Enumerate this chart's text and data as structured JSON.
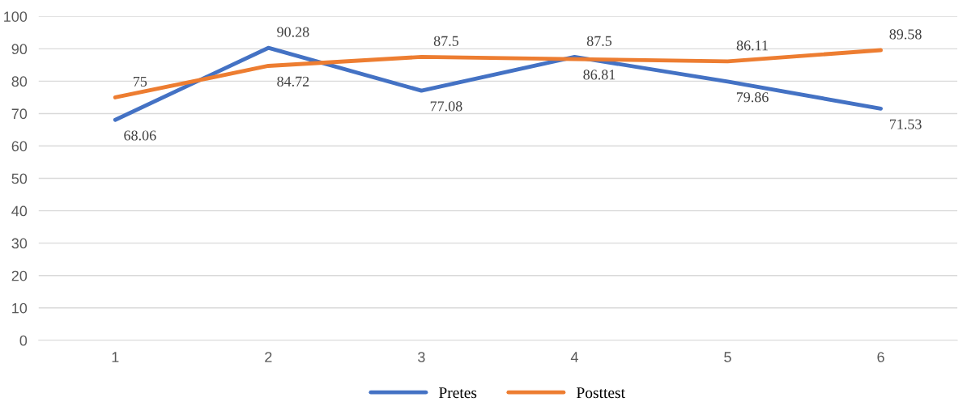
{
  "chart_data": {
    "type": "line",
    "categories": [
      "1",
      "2",
      "3",
      "4",
      "5",
      "6"
    ],
    "series": [
      {
        "name": "Pretes",
        "color": "#4472c4",
        "values": [
          68.06,
          90.28,
          77.08,
          87.5,
          79.86,
          71.53
        ]
      },
      {
        "name": "Posttest",
        "color": "#ed7d31",
        "values": [
          75,
          84.72,
          87.5,
          86.81,
          86.11,
          89.58
        ]
      }
    ],
    "ylim": [
      0,
      100
    ],
    "yticks": [
      0,
      10,
      20,
      30,
      40,
      50,
      60,
      70,
      80,
      90,
      100
    ],
    "grid": "y",
    "legend": "bottom",
    "data_labels": true,
    "marker": "none",
    "line_style": "solid"
  }
}
